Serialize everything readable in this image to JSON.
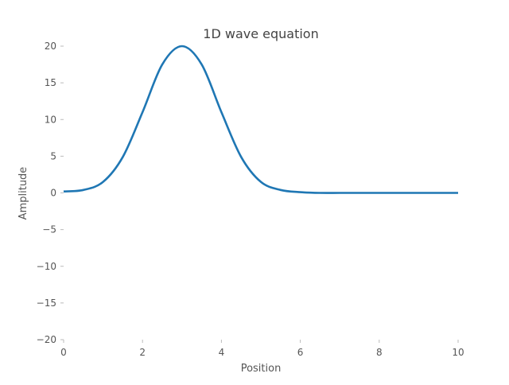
{
  "chart_data": {
    "type": "line",
    "title": "1D wave equation",
    "xlabel": "Position",
    "ylabel": "Amplitude",
    "xlim": [
      0,
      10
    ],
    "ylim": [
      -20,
      20
    ],
    "x_ticks": [
      0,
      2,
      4,
      6,
      8,
      10
    ],
    "y_ticks": [
      -20,
      -15,
      -10,
      -5,
      0,
      5,
      10,
      15,
      20
    ],
    "x_tick_labels": [
      "0",
      "2",
      "4",
      "6",
      "8",
      "10"
    ],
    "y_tick_labels": [
      "−20",
      "−15",
      "−10",
      "−5",
      "0",
      "5",
      "10",
      "15",
      "20"
    ],
    "grid": false,
    "line_color": "#1f77b4",
    "series": [
      {
        "x": [
          0,
          0.5,
          1,
          1.5,
          2,
          2.5,
          3,
          3.5,
          4,
          4.5,
          5,
          5.5,
          6,
          6.5,
          7,
          7.5,
          8,
          8.5,
          9,
          9.5,
          10
        ],
        "y": [
          0.2,
          0.4,
          1.5,
          4.9,
          11.0,
          17.5,
          20.0,
          17.5,
          11.0,
          4.9,
          1.5,
          0.4,
          0.1,
          0,
          0,
          0,
          0,
          0,
          0,
          0,
          0
        ]
      }
    ]
  }
}
